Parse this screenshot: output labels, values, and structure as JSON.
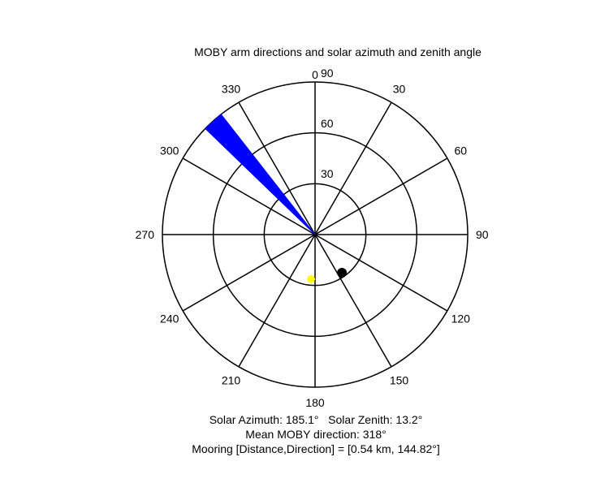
{
  "chart_data": {
    "type": "polar",
    "title": "MOBY arm directions and solar azimuth and zenith angle",
    "azimuth_ticks": [
      0,
      30,
      60,
      90,
      120,
      150,
      180,
      210,
      240,
      270,
      300,
      330
    ],
    "azimuth_tick_labels": [
      "0",
      "30",
      "60",
      "90",
      "120",
      "150",
      "180",
      "210",
      "240",
      "270",
      "300",
      "330"
    ],
    "radial_ticks": [
      30,
      60,
      90
    ],
    "radial_tick_labels": [
      "30",
      "60",
      "90"
    ],
    "rmax": 90,
    "direction": "clockwise",
    "zero_at": "top",
    "grid": true,
    "arm_wedge": {
      "azimuth_start": 314,
      "azimuth_end": 322,
      "radial_extent": 90,
      "color": "#0000ff"
    },
    "sun": {
      "azimuth": 185.1,
      "zenith": 13.2,
      "color": "#ffff00"
    },
    "mooring": {
      "distance_km": 0.54,
      "direction": 144.82,
      "color": "#000000"
    }
  },
  "caption": {
    "line1": "Solar Azimuth: 185.1°   Solar Zenith: 13.2°",
    "line2": "Mean MOBY direction: 318°",
    "line3": "Mooring [Distance,Direction] = [0.54 km, 144.82°]"
  }
}
